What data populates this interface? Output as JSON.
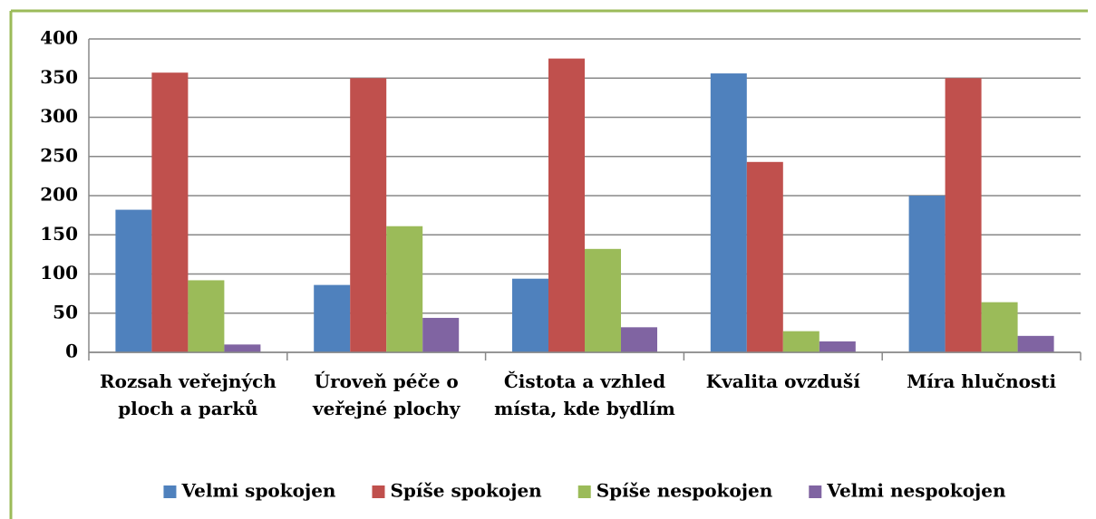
{
  "chart_data": {
    "type": "bar",
    "categories": [
      "Rozsah veřejných ploch a parků",
      "Úroveň péče o veřejné plochy",
      "Čistota a vzhled místa, kde bydlím",
      "Kvalita ovzduší",
      "Míra hlučnosti"
    ],
    "series": [
      {
        "name": "Velmi spokojen",
        "color": "#4f81bd",
        "values": [
          182,
          86,
          94,
          356,
          200
        ]
      },
      {
        "name": "Spíše spokojen",
        "color": "#c0504d",
        "values": [
          357,
          350,
          375,
          243,
          350
        ]
      },
      {
        "name": "Spíše nespokojen",
        "color": "#9bbb59",
        "values": [
          92,
          161,
          132,
          27,
          64
        ]
      },
      {
        "name": "Velmi nespokojen",
        "color": "#8064a2",
        "values": [
          10,
          44,
          32,
          14,
          21
        ]
      }
    ],
    "ylim": [
      0,
      400
    ],
    "yticks": [
      0,
      50,
      100,
      150,
      200,
      250,
      300,
      350,
      400
    ],
    "grid": true,
    "legend": "bottom"
  }
}
